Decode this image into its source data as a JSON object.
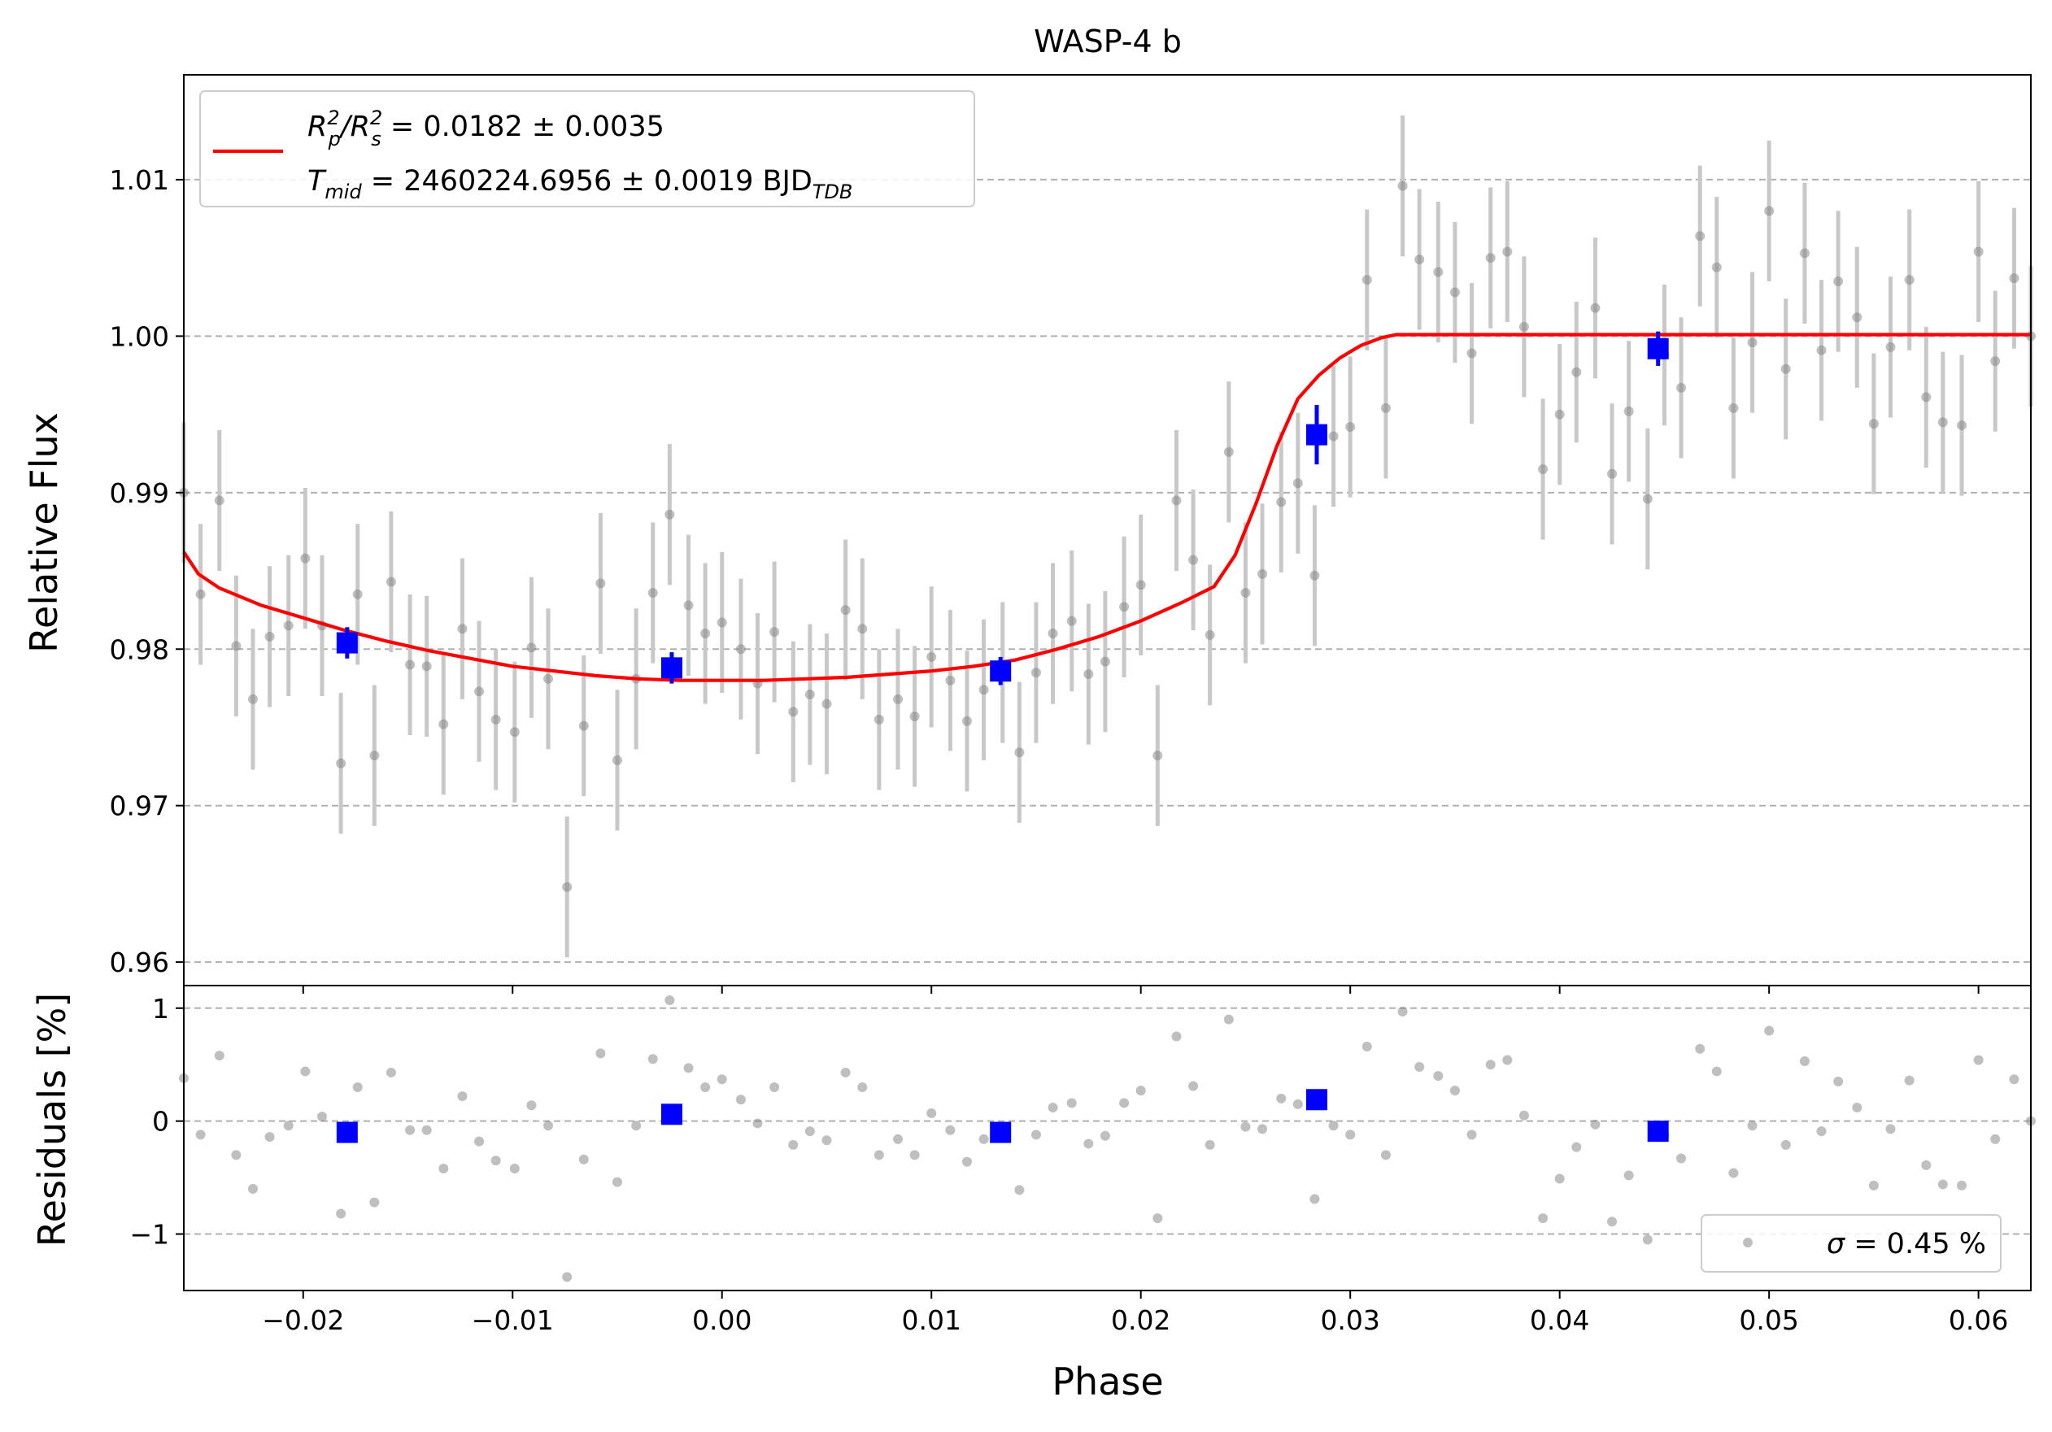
{
  "title": "WASP-4 b",
  "colors": {
    "model": "#ff0000",
    "binned": "#0000ff",
    "data": "#808080",
    "errorbar": "#c8c8c8",
    "grid": "#b0b0b0"
  },
  "chart_data": [
    {
      "type": "scatter",
      "panel": "main",
      "xlabel": "Phase",
      "ylabel": "Relative Flux",
      "xlim": [
        -0.0257,
        0.0625
      ],
      "ylim": [
        0.9585,
        1.0167
      ],
      "yticks": [
        0.96,
        0.97,
        0.98,
        0.99,
        1.0,
        1.01
      ],
      "ytick_labels": [
        "0.96",
        "0.97",
        "0.98",
        "0.99",
        "1.00",
        "1.01"
      ],
      "grid": "y-dashed",
      "legend_position": "upper-left",
      "legend": {
        "line1_main": "R",
        "line1_sub1": "p",
        "line1_sup1": "2",
        "line1_slash": "/R",
        "line1_sub2": "s",
        "line1_sup2": "2",
        "line1_value": " = 0.0182 ± 0.0035",
        "line2_main": "T",
        "line2_sub": "mid",
        "line2_value": " = 2460224.6956 ± 0.0019 BJD",
        "line2_unit_sub": "TDB"
      },
      "series": [
        {
          "name": "data",
          "x": [
            -0.0257,
            -0.0249,
            -0.024,
            -0.0232,
            -0.0224,
            -0.0216,
            -0.0207,
            -0.0199,
            -0.0191,
            -0.0182,
            -0.0174,
            -0.0166,
            -0.0158,
            -0.0149,
            -0.0141,
            -0.0133,
            -0.0124,
            -0.0116,
            -0.0108,
            -0.0099,
            -0.0091,
            -0.0083,
            -0.0074,
            -0.0066,
            -0.0058,
            -0.005,
            -0.0041,
            -0.0033,
            -0.0025,
            -0.0016,
            -0.0008,
            0.0,
            0.0009,
            0.0017,
            0.0025,
            0.0034,
            0.0042,
            0.005,
            0.0059,
            0.0067,
            0.0075,
            0.0084,
            0.0092,
            0.01,
            0.0109,
            0.0117,
            0.0125,
            0.0134,
            0.0142,
            0.015,
            0.0158,
            0.0167,
            0.0175,
            0.0183,
            0.0192,
            0.02,
            0.0208,
            0.0217,
            0.0225,
            0.0233,
            0.0242,
            0.025,
            0.0258,
            0.0267,
            0.0275,
            0.0283,
            0.0292,
            0.03,
            0.0308,
            0.0317,
            0.0325,
            0.0333,
            0.0342,
            0.035,
            0.0358,
            0.0367,
            0.0375,
            0.0383,
            0.0392,
            0.04,
            0.0408,
            0.0417,
            0.0425,
            0.0433,
            0.0442,
            0.045,
            0.0458,
            0.0467,
            0.0475,
            0.0483,
            0.0492,
            0.05,
            0.0508,
            0.0517,
            0.0525,
            0.0533,
            0.0542,
            0.055,
            0.0558,
            0.0567,
            0.0575,
            0.0583,
            0.0592,
            0.06,
            0.0608,
            0.0617,
            0.0625
          ],
          "y": [
            0.99,
            0.9835,
            0.9895,
            0.9802,
            0.9768,
            0.9808,
            0.9815,
            0.9858,
            0.9815,
            0.9727,
            0.9835,
            0.9732,
            0.9843,
            0.979,
            0.9789,
            0.9752,
            0.9813,
            0.9773,
            0.9755,
            0.9747,
            0.9801,
            0.9781,
            0.9648,
            0.9751,
            0.9842,
            0.9729,
            0.9781,
            0.9836,
            0.9886,
            0.9828,
            0.981,
            0.9817,
            0.98,
            0.9778,
            0.9811,
            0.976,
            0.9771,
            0.9765,
            0.9825,
            0.9813,
            0.9755,
            0.9768,
            0.9757,
            0.9795,
            0.978,
            0.9754,
            0.9774,
            0.9785,
            0.9734,
            0.9785,
            0.981,
            0.9818,
            0.9784,
            0.9792,
            0.9827,
            0.9841,
            0.9732,
            0.9895,
            0.9857,
            0.9809,
            0.9926,
            0.9836,
            0.9848,
            0.9894,
            0.9906,
            0.9847,
            0.9936,
            0.9942,
            1.0036,
            0.9954,
            1.0096,
            1.0049,
            1.0041,
            1.0028,
            0.9989,
            1.005,
            1.0054,
            1.0006,
            0.9915,
            0.995,
            0.9977,
            1.0018,
            0.9912,
            0.9952,
            0.9896,
            0.9988,
            0.9967,
            1.0064,
            1.0044,
            0.9954,
            0.9996,
            1.008,
            0.9979,
            1.0053,
            0.9991,
            1.0035,
            1.0012,
            0.9944,
            0.9993,
            1.0036,
            0.9961,
            0.9945,
            0.9943,
            1.0054,
            0.9984,
            1.0037,
            1.0
          ],
          "yerr": 0.0045
        },
        {
          "name": "binned",
          "x": [
            -0.0179,
            -0.0024,
            0.0133,
            0.0284,
            0.0447
          ],
          "y": [
            0.9804,
            0.9788,
            0.9786,
            0.9937,
            0.9992
          ],
          "yerr": [
            0.001,
            0.001,
            0.0009,
            0.0019,
            0.0011
          ]
        },
        {
          "name": "model",
          "type": "line",
          "x": [
            -0.0257,
            -0.025,
            -0.024,
            -0.022,
            -0.02,
            -0.018,
            -0.016,
            -0.014,
            -0.012,
            -0.01,
            -0.008,
            -0.006,
            -0.004,
            -0.002,
            0.0,
            0.002,
            0.004,
            0.006,
            0.008,
            0.01,
            0.012,
            0.014,
            0.016,
            0.018,
            0.02,
            0.022,
            0.0235,
            0.0245,
            0.0255,
            0.0265,
            0.0275,
            0.0285,
            0.0295,
            0.0305,
            0.0315,
            0.0322,
            0.0328,
            0.0335,
            0.0625
          ],
          "y": [
            0.9862,
            0.9848,
            0.9839,
            0.9828,
            0.982,
            0.9812,
            0.9805,
            0.9799,
            0.9794,
            0.9789,
            0.9786,
            0.9783,
            0.9781,
            0.978,
            0.978,
            0.978,
            0.9781,
            0.9782,
            0.9784,
            0.9786,
            0.9789,
            0.9793,
            0.98,
            0.9808,
            0.9818,
            0.983,
            0.984,
            0.986,
            0.9893,
            0.993,
            0.996,
            0.9975,
            0.9986,
            0.9994,
            0.9999,
            1.0001,
            1.0001,
            1.0001,
            1.0001
          ]
        }
      ]
    },
    {
      "type": "scatter",
      "panel": "residuals",
      "xlabel": "Phase",
      "ylabel": "Residuals [%]",
      "xlim": [
        -0.0257,
        0.0625
      ],
      "ylim": [
        -1.5,
        1.2
      ],
      "yticks": [
        -1,
        0,
        1
      ],
      "ytick_labels": [
        "−1",
        "0",
        "1"
      ],
      "xticks": [
        -0.02,
        -0.01,
        0.0,
        0.01,
        0.02,
        0.03,
        0.04,
        0.05,
        0.06
      ],
      "xtick_labels": [
        "−0.02",
        "−0.01",
        "0.00",
        "0.01",
        "0.02",
        "0.03",
        "0.04",
        "0.05",
        "0.06"
      ],
      "grid": "y-dashed",
      "legend_position": "lower-right",
      "legend": {
        "sigma_symbol": "σ",
        "sigma_value": " = 0.45 %"
      },
      "series": [
        {
          "name": "residuals",
          "y": [
            0.38,
            -0.12,
            0.58,
            -0.3,
            -0.6,
            -0.14,
            -0.04,
            0.44,
            0.04,
            -0.82,
            0.3,
            -0.72,
            0.43,
            -0.08,
            -0.08,
            -0.42,
            0.22,
            -0.18,
            -0.35,
            -0.42,
            0.14,
            -0.04,
            -1.38,
            -0.34,
            0.6,
            -0.54,
            -0.04,
            0.55,
            1.07,
            0.47,
            0.3,
            0.37,
            0.19,
            -0.02,
            0.3,
            -0.21,
            -0.09,
            -0.17,
            0.43,
            0.3,
            -0.3,
            -0.16,
            -0.3,
            0.07,
            -0.08,
            -0.36,
            -0.16,
            -0.09,
            -0.61,
            -0.12,
            0.12,
            0.16,
            -0.2,
            -0.13,
            0.16,
            0.27,
            -0.86,
            0.75,
            0.31,
            -0.21,
            0.9,
            -0.05,
            -0.07,
            0.2,
            0.15,
            -0.69,
            -0.04,
            -0.12,
            0.66,
            -0.3,
            0.97,
            0.48,
            0.4,
            0.27,
            -0.12,
            0.5,
            0.54,
            0.05,
            -0.86,
            -0.51,
            -0.23,
            -0.03,
            -0.89,
            -0.48,
            -1.05,
            -0.12,
            -0.33,
            0.64,
            0.44,
            -0.46,
            -0.04,
            0.8,
            -0.21,
            0.53,
            -0.09,
            0.35,
            0.12,
            -0.57,
            -0.07,
            0.36,
            -0.39,
            -0.56,
            -0.57,
            0.54,
            -0.16,
            0.37,
            0.0
          ]
        },
        {
          "name": "binned",
          "x": [
            -0.0179,
            -0.0024,
            0.0133,
            0.0284,
            0.0447
          ],
          "y": [
            -0.1,
            0.06,
            -0.1,
            0.19,
            -0.09
          ]
        }
      ]
    }
  ]
}
